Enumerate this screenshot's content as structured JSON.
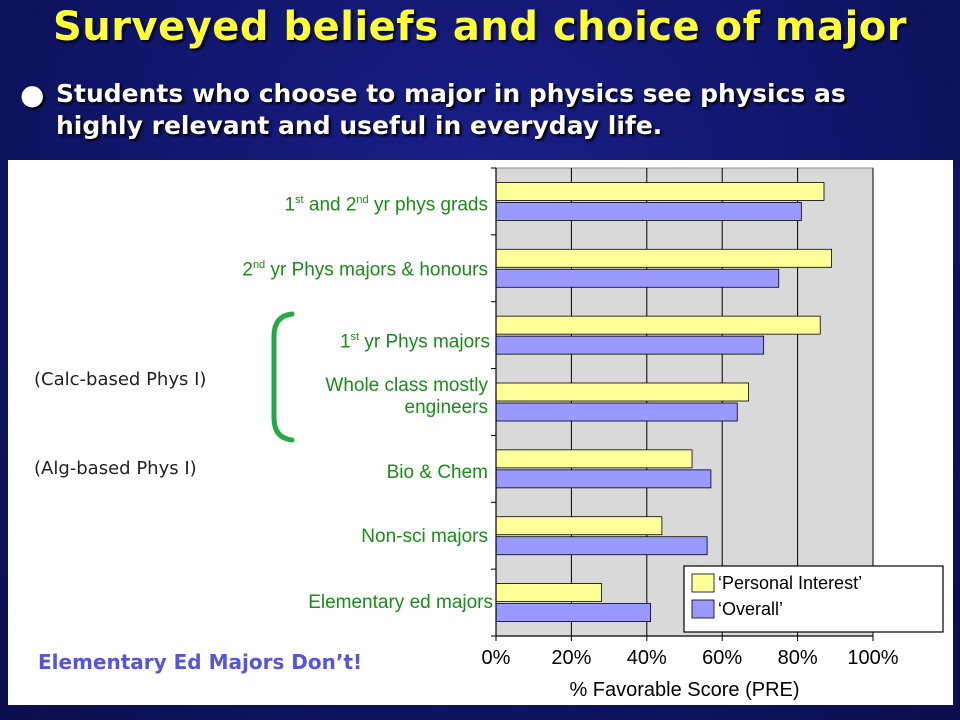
{
  "slide": {
    "title": "Surveyed beliefs and choice of major",
    "bullet": "Students who choose to major in physics see physics as highly relevant and useful in everyday life.",
    "side_notes": [
      "(Calc-based Phys I)",
      "(Alg-based Phys I)"
    ],
    "footer_note": "Elementary Ed Majors Don’t!"
  },
  "colors": {
    "personal_interest": "#ffff99",
    "overall": "#9999ff",
    "plot_bg": "#d9d9d9",
    "label_green": "#1a8c1a",
    "title_yellow": "#ffff33"
  },
  "chart_data": {
    "type": "bar",
    "orientation": "horizontal",
    "categories": [
      "1st and 2nd yr phys grads",
      "2nd yr Phys majors & honours",
      "1st yr Phys majors",
      "Whole class mostly engineers",
      "Bio & Chem",
      "Non-sci majors",
      "Elementary ed majors"
    ],
    "series": [
      {
        "name": "‘Personal Interest’",
        "color": "#ffff99",
        "values": [
          87,
          89,
          86,
          67,
          52,
          44,
          28
        ]
      },
      {
        "name": "‘Overall’",
        "color": "#9999ff",
        "values": [
          81,
          75,
          71,
          64,
          57,
          56,
          41
        ]
      }
    ],
    "xlabel": "% Favorable Score (PRE)",
    "xlim": [
      0,
      100
    ],
    "x_ticks": [
      "0%",
      "20%",
      "40%",
      "60%",
      "80%",
      "100%"
    ],
    "grid": "vertical",
    "legend_position": "bottom-right"
  }
}
